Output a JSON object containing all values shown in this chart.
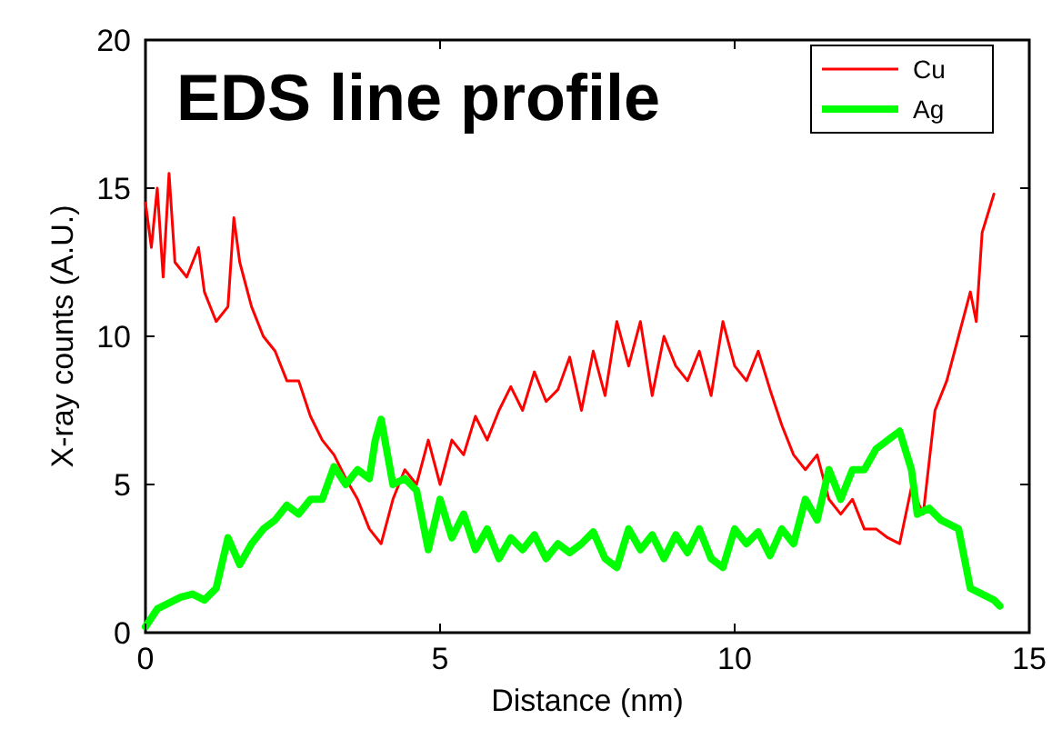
{
  "chart_data": {
    "type": "line",
    "title": "EDS line profile",
    "xlabel": "Distance (nm)",
    "ylabel": "X-ray counts (A.U.)",
    "xlim": [
      0,
      15
    ],
    "xticks": [
      0,
      5,
      10,
      15
    ],
    "ylim": [
      0,
      20
    ],
    "yticks": [
      0,
      5,
      10,
      15,
      20
    ],
    "grid": false,
    "legend": "top right",
    "marker": "none",
    "line_style": "solid",
    "series": [
      {
        "name": "Cu",
        "color": "#ff0000",
        "x": [
          0,
          0.1,
          0.2,
          0.3,
          0.4,
          0.5,
          0.7,
          0.9,
          1.0,
          1.2,
          1.4,
          1.5,
          1.6,
          1.8,
          2.0,
          2.2,
          2.4,
          2.6,
          2.8,
          3.0,
          3.2,
          3.4,
          3.6,
          3.8,
          4.0,
          4.2,
          4.4,
          4.6,
          4.8,
          5.0,
          5.2,
          5.4,
          5.6,
          5.8,
          6.0,
          6.2,
          6.4,
          6.6,
          6.8,
          7.0,
          7.2,
          7.4,
          7.6,
          7.8,
          8.0,
          8.2,
          8.4,
          8.6,
          8.8,
          9.0,
          9.2,
          9.4,
          9.6,
          9.8,
          10.0,
          10.2,
          10.4,
          10.6,
          10.8,
          11.0,
          11.2,
          11.4,
          11.6,
          11.8,
          12.0,
          12.2,
          12.4,
          12.6,
          12.8,
          13.0,
          13.2,
          13.4,
          13.6,
          13.8,
          14.0,
          14.1,
          14.2,
          14.4
        ],
        "values": [
          14.5,
          13,
          15,
          12,
          15.5,
          12.5,
          12,
          13,
          11.5,
          10.5,
          11,
          14,
          12.5,
          11,
          10,
          9.5,
          8.5,
          8.5,
          7.3,
          6.5,
          6,
          5.2,
          4.5,
          3.5,
          3,
          4.5,
          5.5,
          5,
          6.5,
          5,
          6.5,
          6,
          7.3,
          6.5,
          7.5,
          8.3,
          7.5,
          8.8,
          7.8,
          8.2,
          9.3,
          7.5,
          9.5,
          8,
          10.5,
          9,
          10.5,
          8,
          10,
          9,
          8.5,
          9.5,
          8,
          10.5,
          9,
          8.5,
          9.5,
          8.2,
          7,
          6,
          5.5,
          6,
          4.5,
          4,
          4.5,
          3.5,
          3.5,
          3.2,
          3,
          4.9,
          4,
          7.5,
          8.5,
          10,
          11.5,
          10.5,
          13.5,
          14.8
        ]
      },
      {
        "name": "Ag",
        "color": "#00ff00",
        "x": [
          0,
          0.2,
          0.4,
          0.6,
          0.8,
          1.0,
          1.2,
          1.4,
          1.6,
          1.8,
          2.0,
          2.2,
          2.4,
          2.6,
          2.8,
          3.0,
          3.2,
          3.4,
          3.6,
          3.8,
          3.9,
          4.0,
          4.2,
          4.4,
          4.6,
          4.8,
          5.0,
          5.2,
          5.4,
          5.6,
          5.8,
          6.0,
          6.2,
          6.4,
          6.6,
          6.8,
          7.0,
          7.2,
          7.4,
          7.6,
          7.8,
          8.0,
          8.2,
          8.4,
          8.6,
          8.8,
          9.0,
          9.2,
          9.4,
          9.6,
          9.8,
          10.0,
          10.2,
          10.4,
          10.6,
          10.8,
          11.0,
          11.2,
          11.4,
          11.6,
          11.8,
          12.0,
          12.2,
          12.4,
          12.6,
          12.8,
          13.0,
          13.1,
          13.3,
          13.5,
          13.8,
          14.0,
          14.2,
          14.4,
          14.5
        ],
        "values": [
          0.2,
          0.8,
          1.0,
          1.2,
          1.3,
          1.1,
          1.5,
          3.2,
          2.3,
          3.0,
          3.5,
          3.8,
          4.3,
          4.0,
          4.5,
          4.5,
          5.6,
          5.0,
          5.5,
          5.2,
          6.5,
          7.2,
          5.0,
          5.2,
          4.8,
          2.8,
          4.5,
          3.2,
          4.0,
          2.8,
          3.5,
          2.5,
          3.2,
          2.8,
          3.3,
          2.5,
          3.0,
          2.7,
          3.0,
          3.4,
          2.5,
          2.2,
          3.5,
          2.8,
          3.3,
          2.5,
          3.3,
          2.7,
          3.5,
          2.5,
          2.2,
          3.5,
          3.0,
          3.4,
          2.6,
          3.5,
          3.0,
          4.5,
          3.8,
          5.5,
          4.5,
          5.5,
          5.5,
          6.2,
          6.5,
          6.8,
          5.5,
          4.0,
          4.2,
          3.8,
          3.5,
          1.5,
          1.3,
          1.1,
          0.9
        ]
      }
    ]
  }
}
